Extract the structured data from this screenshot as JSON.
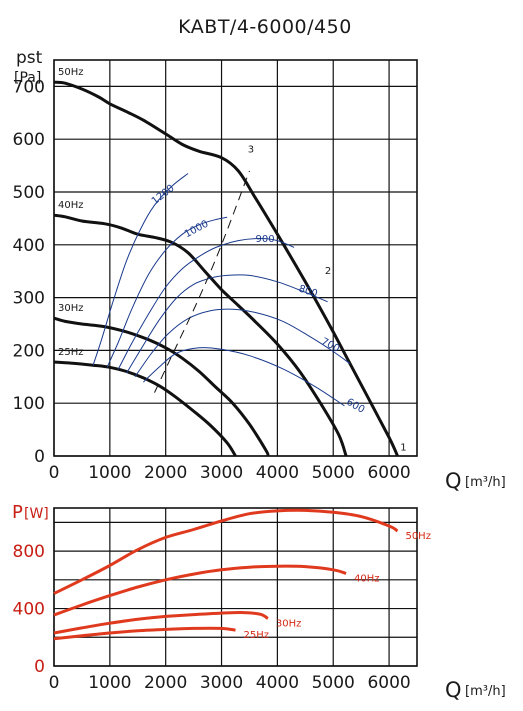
{
  "chart_data": [
    {
      "type": "line",
      "title": "KABT/4-6000/450",
      "ylabel": "pst",
      "yunit": "[Pa]",
      "xlabel": "Q",
      "xunit": "[m³/h]",
      "xlim": [
        0,
        6500
      ],
      "ylim": [
        0,
        750
      ],
      "xticks": [
        0,
        1000,
        2000,
        3000,
        4000,
        5000,
        6000
      ],
      "yticks": [
        0,
        100,
        200,
        300,
        400,
        500,
        600,
        700
      ],
      "grid": true,
      "series": [
        {
          "name": "50Hz",
          "style": "fan-curve",
          "points": [
            [
              0,
              708
            ],
            [
              200,
              706
            ],
            [
              500,
              695
            ],
            [
              800,
              680
            ],
            [
              1000,
              667
            ],
            [
              1300,
              652
            ],
            [
              1600,
              636
            ],
            [
              2000,
              610
            ],
            [
              2300,
              590
            ],
            [
              2600,
              577
            ],
            [
              3000,
              565
            ],
            [
              3300,
              540
            ],
            [
              3600,
              490
            ],
            [
              4000,
              420
            ],
            [
              4500,
              330
            ],
            [
              5000,
              235
            ],
            [
              5500,
              135
            ],
            [
              6000,
              35
            ],
            [
              6150,
              0
            ]
          ]
        },
        {
          "name": "40Hz",
          "style": "fan-curve",
          "points": [
            [
              0,
              456
            ],
            [
              200,
              453
            ],
            [
              500,
              445
            ],
            [
              900,
              440
            ],
            [
              1200,
              432
            ],
            [
              1500,
              420
            ],
            [
              1800,
              414
            ],
            [
              2100,
              405
            ],
            [
              2400,
              385
            ],
            [
              2700,
              350
            ],
            [
              3000,
              315
            ],
            [
              3300,
              285
            ],
            [
              3600,
              255
            ],
            [
              4000,
              212
            ],
            [
              4400,
              160
            ],
            [
              4800,
              95
            ],
            [
              5100,
              40
            ],
            [
              5230,
              0
            ]
          ]
        },
        {
          "name": "30Hz",
          "style": "fan-curve",
          "points": [
            [
              0,
              261
            ],
            [
              200,
              255
            ],
            [
              500,
              250
            ],
            [
              900,
              245
            ],
            [
              1300,
              235
            ],
            [
              1700,
              220
            ],
            [
              2000,
              205
            ],
            [
              2300,
              185
            ],
            [
              2600,
              160
            ],
            [
              2900,
              130
            ],
            [
              3200,
              100
            ],
            [
              3500,
              60
            ],
            [
              3800,
              10
            ],
            [
              3830,
              0
            ]
          ]
        },
        {
          "name": "25Hz",
          "style": "fan-curve",
          "points": [
            [
              0,
              178
            ],
            [
              300,
              176
            ],
            [
              700,
              172
            ],
            [
              1000,
              168
            ],
            [
              1300,
              160
            ],
            [
              1600,
              148
            ],
            [
              1900,
              132
            ],
            [
              2200,
              110
            ],
            [
              2500,
              85
            ],
            [
              2800,
              58
            ],
            [
              3100,
              25
            ],
            [
              3250,
              0
            ]
          ]
        },
        {
          "name": "1200",
          "style": "iso-rpm",
          "points": [
            [
              700,
              172
            ],
            [
              850,
              220
            ],
            [
              1050,
              290
            ],
            [
              1300,
              370
            ],
            [
              1550,
              430
            ],
            [
              1800,
              475
            ],
            [
              2100,
              510
            ],
            [
              2400,
              535
            ]
          ]
        },
        {
          "name": "1000",
          "style": "iso-rpm",
          "points": [
            [
              950,
              168
            ],
            [
              1150,
              215
            ],
            [
              1400,
              280
            ],
            [
              1700,
              345
            ],
            [
              2000,
              390
            ],
            [
              2300,
              420
            ],
            [
              2600,
              438
            ],
            [
              2900,
              448
            ],
            [
              3100,
              452
            ]
          ]
        },
        {
          "name": "900",
          "style": "iso-rpm",
          "points": [
            [
              1150,
              164
            ],
            [
              1400,
              215
            ],
            [
              1700,
              270
            ],
            [
              2000,
              320
            ],
            [
              2300,
              355
            ],
            [
              2600,
              378
            ],
            [
              2900,
              395
            ],
            [
              3300,
              408
            ],
            [
              3700,
              412
            ],
            [
              4000,
              408
            ],
            [
              4300,
              395
            ]
          ]
        },
        {
          "name": "800",
          "style": "iso-rpm",
          "points": [
            [
              1300,
              157
            ],
            [
              1600,
              210
            ],
            [
              1900,
              260
            ],
            [
              2200,
              300
            ],
            [
              2500,
              325
            ],
            [
              2800,
              337
            ],
            [
              3100,
              342
            ],
            [
              3500,
              342
            ],
            [
              4000,
              330
            ],
            [
              4500,
              310
            ],
            [
              4900,
              292
            ]
          ]
        },
        {
          "name": "700",
          "style": "iso-rpm",
          "points": [
            [
              1450,
              150
            ],
            [
              1750,
              195
            ],
            [
              2050,
              232
            ],
            [
              2400,
              260
            ],
            [
              2800,
              275
            ],
            [
              3200,
              278
            ],
            [
              3600,
              272
            ],
            [
              4100,
              255
            ],
            [
              4600,
              225
            ],
            [
              5000,
              198
            ],
            [
              5300,
              175
            ]
          ]
        },
        {
          "name": "600",
          "style": "iso-rpm",
          "points": [
            [
              1600,
              140
            ],
            [
              1900,
              170
            ],
            [
              2200,
              195
            ],
            [
              2600,
              205
            ],
            [
              3000,
              202
            ],
            [
              3500,
              190
            ],
            [
              4100,
              165
            ],
            [
              4700,
              130
            ],
            [
              5200,
              95
            ]
          ]
        },
        {
          "name": "3",
          "style": "dashed",
          "points": [
            [
              1800,
              120
            ],
            [
              2200,
              210
            ],
            [
              2600,
              300
            ],
            [
              3000,
              400
            ],
            [
              3500,
              540
            ]
          ]
        }
      ],
      "annotations": [
        {
          "text": "1",
          "x": 6200,
          "y": 10
        },
        {
          "text": "2",
          "x": 4850,
          "y": 345
        },
        {
          "text": "3",
          "x": 3470,
          "y": 575
        }
      ]
    },
    {
      "type": "line",
      "ylabel": "P",
      "yunit": "[W]",
      "xlabel": "Q",
      "xunit": "[m³/h]",
      "xlim": [
        0,
        6500
      ],
      "ylim": [
        0,
        1100
      ],
      "xticks": [
        0,
        1000,
        2000,
        3000,
        4000,
        5000,
        6000
      ],
      "yticks": [
        0,
        400,
        800
      ],
      "grid": true,
      "series": [
        {
          "name": "50Hz",
          "points": [
            [
              0,
              505
            ],
            [
              500,
              600
            ],
            [
              1000,
              700
            ],
            [
              1500,
              810
            ],
            [
              2000,
              895
            ],
            [
              2500,
              950
            ],
            [
              3000,
              1010
            ],
            [
              3500,
              1060
            ],
            [
              4000,
              1080
            ],
            [
              4500,
              1083
            ],
            [
              5000,
              1070
            ],
            [
              5500,
              1040
            ],
            [
              6000,
              975
            ],
            [
              6150,
              940
            ]
          ]
        },
        {
          "name": "40Hz",
          "points": [
            [
              0,
              355
            ],
            [
              500,
              425
            ],
            [
              1000,
              490
            ],
            [
              1500,
              550
            ],
            [
              2000,
              600
            ],
            [
              2500,
              640
            ],
            [
              3000,
              670
            ],
            [
              3500,
              688
            ],
            [
              4000,
              695
            ],
            [
              4500,
              692
            ],
            [
              5000,
              670
            ],
            [
              5230,
              645
            ]
          ]
        },
        {
          "name": "30Hz",
          "points": [
            [
              0,
              230
            ],
            [
              500,
              265
            ],
            [
              1000,
              298
            ],
            [
              1500,
              325
            ],
            [
              2000,
              345
            ],
            [
              2500,
              358
            ],
            [
              3000,
              368
            ],
            [
              3400,
              372
            ],
            [
              3700,
              360
            ],
            [
              3830,
              330
            ]
          ]
        },
        {
          "name": "25Hz",
          "points": [
            [
              0,
              190
            ],
            [
              500,
              210
            ],
            [
              1000,
              230
            ],
            [
              1500,
              245
            ],
            [
              2000,
              255
            ],
            [
              2500,
              262
            ],
            [
              3000,
              262
            ],
            [
              3250,
              250
            ]
          ]
        }
      ]
    }
  ],
  "labels": {
    "title": "KABT/4-6000/450",
    "ylabel_top_main": "pst",
    "ylabel_top_unit": "[Pa]",
    "xlabel": "Q",
    "xunit": "[m³/h]",
    "ylabel_bottom_main": "P",
    "ylabel_bottom_unit": "[W]"
  },
  "colors": {
    "curve": "#111111",
    "iso": "#1a3a8c",
    "power": "#e03a1e",
    "axis_text": "#1a1a1a",
    "power_text": "#c81e14"
  }
}
